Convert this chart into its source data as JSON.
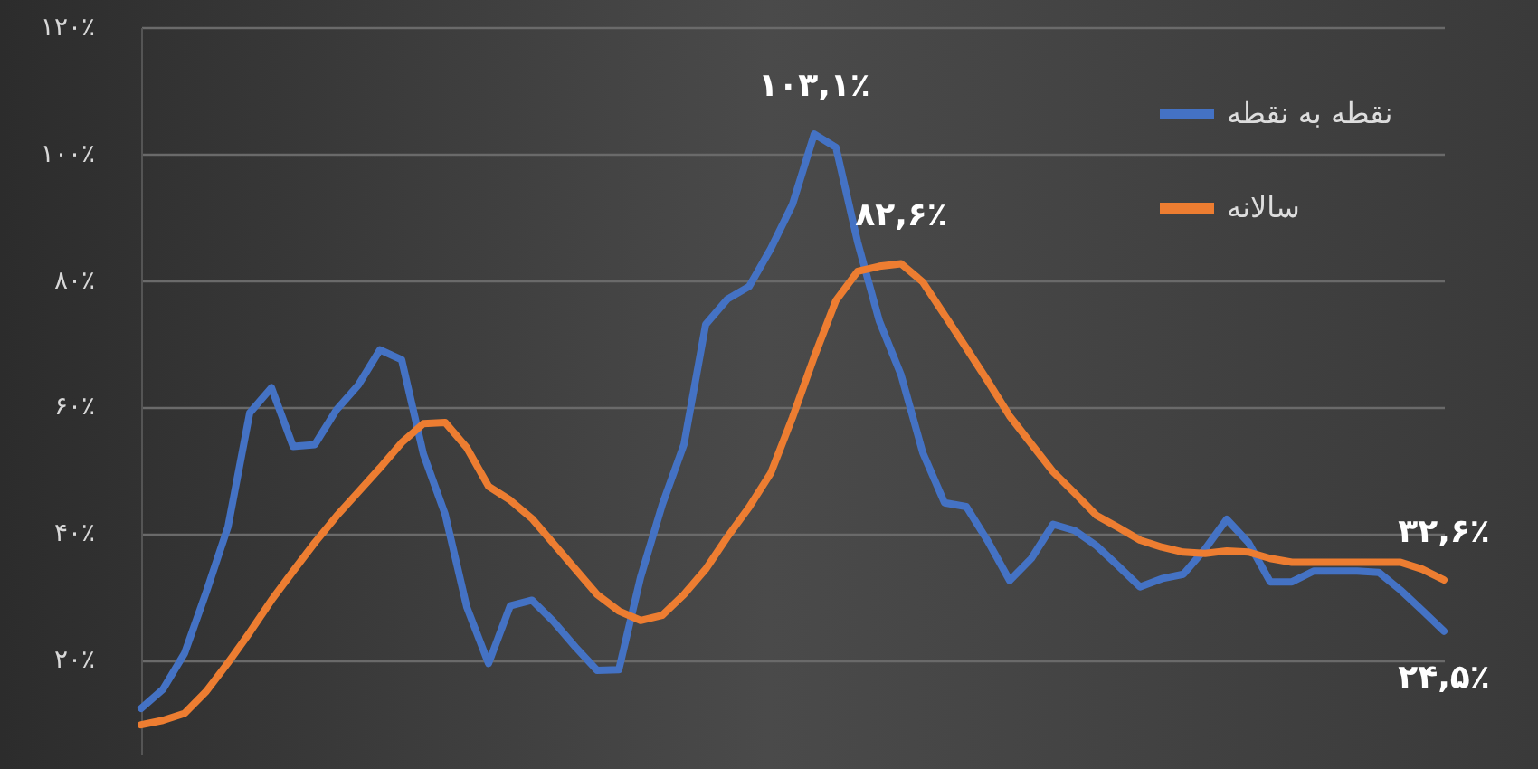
{
  "chart_data": {
    "type": "line",
    "categories": [
      null,
      null,
      null,
      null,
      null,
      null,
      null,
      null,
      null,
      null,
      null,
      null,
      null,
      null,
      null,
      null,
      null,
      null,
      null,
      null,
      null,
      null,
      null,
      null,
      null,
      null,
      null,
      null,
      null,
      null,
      null,
      null,
      null,
      null,
      null,
      null,
      null,
      null,
      null,
      null,
      null,
      null,
      null,
      null,
      null,
      null,
      null,
      null,
      null,
      null,
      null,
      null,
      null,
      null,
      null,
      null,
      null,
      null,
      null,
      null,
      null
    ],
    "series": [
      {
        "name": "نقطه به نقطه",
        "color": "#4472c4",
        "values": [
          12.3,
          15.3,
          21,
          30.7,
          41,
          59,
          63,
          53.7,
          54,
          59.5,
          63.4,
          69,
          67.4,
          52.5,
          43,
          28.3,
          19.4,
          28.5,
          29.4,
          26,
          22,
          18.3,
          18.4,
          33,
          44.5,
          54,
          73,
          77,
          79,
          85,
          92,
          103.1,
          101,
          86,
          73.5,
          65,
          52.7,
          44.8,
          44.2,
          38.7,
          32.5,
          36,
          41.4,
          40.4,
          38,
          34.8,
          31.5,
          32.8,
          33.5,
          37.5,
          42.2,
          38.5,
          32.3,
          32.3,
          34,
          34,
          34,
          33.8,
          31,
          27.8,
          24.5
        ],
        "value_labels": [
          null,
          null,
          null,
          null,
          null,
          null,
          null,
          null,
          null,
          null,
          null,
          null,
          null,
          null,
          null,
          null,
          null,
          null,
          null,
          null,
          null,
          null,
          null,
          null,
          null,
          null,
          null,
          null,
          null,
          null,
          null,
          "۱۰۳,۱٪",
          null,
          null,
          null,
          null,
          null,
          null,
          null,
          null,
          null,
          null,
          null,
          null,
          null,
          null,
          null,
          null,
          null,
          null,
          null,
          null,
          null,
          null,
          null,
          null,
          null,
          null,
          null,
          null,
          "۲۴,۵٪"
        ]
      },
      {
        "name": "سالانه",
        "color": "#ed7d31",
        "values": [
          9.7,
          10.4,
          11.5,
          15,
          19.5,
          24.3,
          29.4,
          34,
          38.5,
          42.7,
          46.5,
          50.3,
          54.3,
          57.3,
          57.5,
          53.5,
          47.4,
          45.2,
          42.3,
          38.3,
          34.3,
          30.3,
          27.7,
          26.2,
          27,
          30.3,
          34.3,
          39.4,
          44.1,
          49.5,
          58.3,
          67.9,
          76.8,
          81.4,
          82.2,
          82.6,
          79.7,
          74.5,
          69.3,
          64,
          58.5,
          54.1,
          49.7,
          46.3,
          42.8,
          40.9,
          38.9,
          37.8,
          37,
          36.8,
          37.2,
          37,
          36,
          35.4,
          35.4,
          35.4,
          35.4,
          35.4,
          35.4,
          34.3,
          32.6
        ],
        "value_labels": [
          null,
          null,
          null,
          null,
          null,
          null,
          null,
          null,
          null,
          null,
          null,
          null,
          null,
          null,
          null,
          null,
          null,
          null,
          null,
          null,
          null,
          null,
          null,
          null,
          null,
          null,
          null,
          null,
          null,
          null,
          null,
          null,
          null,
          null,
          null,
          "۸۲,۶٪",
          null,
          null,
          null,
          null,
          null,
          null,
          null,
          null,
          null,
          null,
          null,
          null,
          null,
          null,
          null,
          null,
          null,
          null,
          null,
          null,
          null,
          null,
          null,
          null,
          "۳۲,۶٪"
        ]
      }
    ],
    "ylim": [
      5,
      120
    ],
    "yticks": [
      {
        "value": 20,
        "label": "۲۰٪"
      },
      {
        "value": 40,
        "label": "۴۰٪"
      },
      {
        "value": 60,
        "label": "۶۰٪"
      },
      {
        "value": 80,
        "label": "۸۰٪"
      },
      {
        "value": 100,
        "label": "۱۰۰٪"
      },
      {
        "value": 120,
        "label": "۱۲۰٪"
      }
    ],
    "grid": "y",
    "legend": "top right",
    "marker": "none",
    "line_style": "solid",
    "tick_labels": "y"
  }
}
